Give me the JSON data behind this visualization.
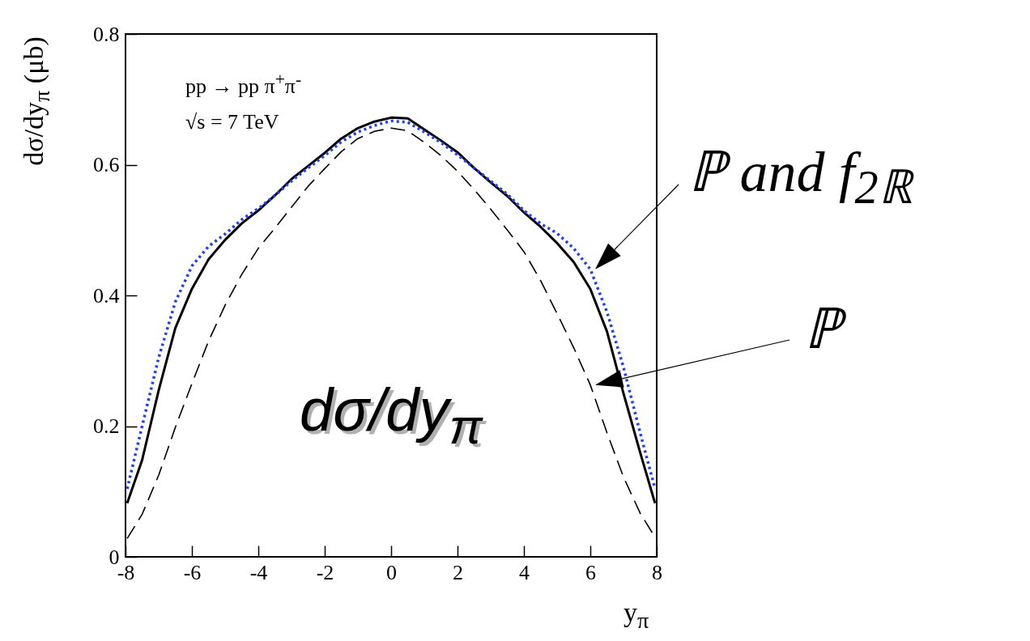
{
  "chart_data": {
    "type": "line",
    "xlabel": "y$_{π}$",
    "ylabel": "dσ/dy$_{π}$ (μb)",
    "annotations": [
      "pp → pp π$^{+}$π$^{-}$",
      "√s = 7 TeV",
      "dσ/dy$_{π}$"
    ],
    "x": [
      -7.95,
      -7.5,
      -7,
      -6.5,
      -6,
      -5.5,
      -5,
      -4.5,
      -4,
      -3.5,
      -3,
      -2.5,
      -2,
      -1.5,
      -1,
      -0.5,
      0,
      0.5,
      1,
      1.5,
      2,
      2.5,
      3,
      3.5,
      4,
      4.5,
      5,
      5.5,
      6,
      6.5,
      7,
      7.5,
      7.95
    ],
    "series": [
      {
        "color": "#000000",
        "line_style": "solid",
        "values": [
          0.082,
          0.148,
          0.255,
          0.35,
          0.41,
          0.455,
          0.485,
          0.51,
          0.53,
          0.553,
          0.578,
          0.598,
          0.618,
          0.64,
          0.656,
          0.666,
          0.672,
          0.671,
          0.654,
          0.637,
          0.619,
          0.595,
          0.573,
          0.552,
          0.527,
          0.505,
          0.48,
          0.451,
          0.41,
          0.345,
          0.25,
          0.16,
          0.082
        ]
      },
      {
        "name": "ℙ and f$_{2ℝ}$",
        "color": "#1f3dff",
        "line_style": "dotted",
        "values": [
          0.104,
          0.2,
          0.305,
          0.39,
          0.445,
          0.475,
          0.494,
          0.516,
          0.533,
          0.553,
          0.575,
          0.595,
          0.614,
          0.635,
          0.65,
          0.66,
          0.667,
          0.665,
          0.65,
          0.634,
          0.615,
          0.595,
          0.575,
          0.555,
          0.53,
          0.51,
          0.495,
          0.472,
          0.44,
          0.375,
          0.29,
          0.19,
          0.104
        ]
      },
      {
        "name": "ℙ",
        "color": "#000000",
        "line_style": "dashed",
        "values": [
          0.028,
          0.065,
          0.125,
          0.198,
          0.265,
          0.33,
          0.385,
          0.432,
          0.472,
          0.503,
          0.535,
          0.567,
          0.594,
          0.62,
          0.64,
          0.651,
          0.656,
          0.652,
          0.634,
          0.614,
          0.59,
          0.562,
          0.532,
          0.5,
          0.467,
          0.423,
          0.372,
          0.32,
          0.263,
          0.19,
          0.122,
          0.067,
          0.03
        ]
      }
    ],
    "xlim": [
      -8,
      8
    ],
    "xticks": [
      -8,
      -6,
      -4,
      -2,
      0,
      2,
      4,
      6,
      8
    ],
    "ylim": [
      0,
      0.8
    ],
    "yticks": [
      0,
      0.2,
      0.4,
      0.6,
      0.8
    ],
    "legend": "right"
  }
}
